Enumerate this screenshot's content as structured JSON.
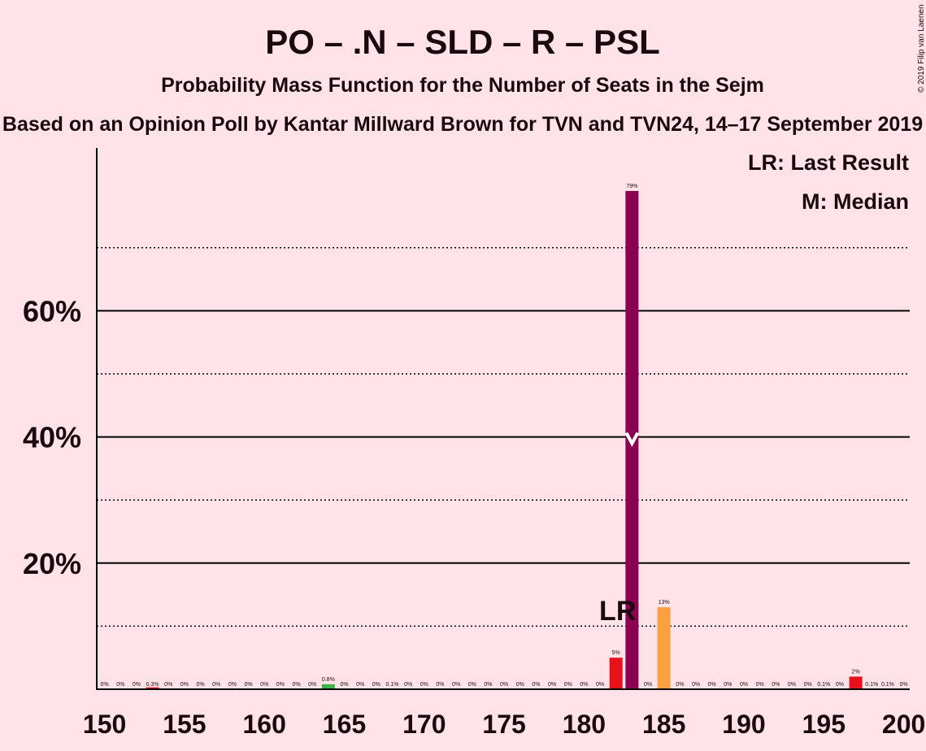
{
  "chart_data": {
    "type": "bar",
    "title": "PO – .N – SLD – R – PSL",
    "subtitle": "Probability Mass Function for the Number of Seats in the Sejm",
    "source": "Based on an Opinion Poll by Kantar Millward Brown for TVN and TVN24, 14–17 September 2019",
    "copyright": "© 2019 Filip van Laenen",
    "legend": {
      "last_result": "LR: Last Result",
      "median": "M: Median",
      "placement": "top-right"
    },
    "x_range": [
      150,
      200
    ],
    "x_ticks": [
      "150",
      "155",
      "160",
      "165",
      "170",
      "175",
      "180",
      "185",
      "190",
      "195",
      "200"
    ],
    "y_range": [
      0,
      85
    ],
    "y_ticks_major": [
      {
        "value": 20,
        "label": "20%"
      },
      {
        "value": 40,
        "label": "40%"
      },
      {
        "value": 60,
        "label": "60%"
      }
    ],
    "y_gridlines_minor": [
      10,
      30,
      50,
      70
    ],
    "last_result": {
      "seats": 182,
      "label": "LR"
    },
    "median": {
      "seats": 183,
      "value": 40
    },
    "colors": {
      "background": "#FFE3E8",
      "median_bar": "#8B0051",
      "last_result_bar": "#E8101B",
      "orange_bar": "#FFA040",
      "green_bar": "#3CB44B",
      "red_bar": "#E8101B",
      "text": "#1a0a0f"
    },
    "bars": [
      {
        "seats": 150,
        "value": 0,
        "label": "0%"
      },
      {
        "seats": 151,
        "value": 0,
        "label": "0%"
      },
      {
        "seats": 152,
        "value": 0,
        "label": "0%"
      },
      {
        "seats": 153,
        "value": 0.3,
        "label": "0.3%",
        "color": "red"
      },
      {
        "seats": 154,
        "value": 0,
        "label": "0%"
      },
      {
        "seats": 155,
        "value": 0,
        "label": "0%"
      },
      {
        "seats": 156,
        "value": 0,
        "label": "0%"
      },
      {
        "seats": 157,
        "value": 0,
        "label": "0%"
      },
      {
        "seats": 158,
        "value": 0,
        "label": "0%"
      },
      {
        "seats": 159,
        "value": 0,
        "label": "0%"
      },
      {
        "seats": 160,
        "value": 0,
        "label": "0%"
      },
      {
        "seats": 161,
        "value": 0,
        "label": "0%"
      },
      {
        "seats": 162,
        "value": 0,
        "label": "0%"
      },
      {
        "seats": 163,
        "value": 0,
        "label": "0%"
      },
      {
        "seats": 164,
        "value": 0.8,
        "label": "0.8%",
        "color": "green"
      },
      {
        "seats": 165,
        "value": 0,
        "label": "0%"
      },
      {
        "seats": 166,
        "value": 0,
        "label": "0%"
      },
      {
        "seats": 167,
        "value": 0,
        "label": "0%"
      },
      {
        "seats": 168,
        "value": 0.1,
        "label": "0.1%"
      },
      {
        "seats": 169,
        "value": 0,
        "label": "0%"
      },
      {
        "seats": 170,
        "value": 0,
        "label": "0%"
      },
      {
        "seats": 171,
        "value": 0,
        "label": "0%"
      },
      {
        "seats": 172,
        "value": 0,
        "label": "0%"
      },
      {
        "seats": 173,
        "value": 0,
        "label": "0%"
      },
      {
        "seats": 174,
        "value": 0,
        "label": "0%"
      },
      {
        "seats": 175,
        "value": 0,
        "label": "0%"
      },
      {
        "seats": 176,
        "value": 0,
        "label": "0%"
      },
      {
        "seats": 177,
        "value": 0,
        "label": "0%"
      },
      {
        "seats": 178,
        "value": 0,
        "label": "0%"
      },
      {
        "seats": 179,
        "value": 0,
        "label": "0%"
      },
      {
        "seats": 180,
        "value": 0,
        "label": "0%"
      },
      {
        "seats": 181,
        "value": 0,
        "label": "0%"
      },
      {
        "seats": 182,
        "value": 5,
        "label": "5%",
        "color": "red"
      },
      {
        "seats": 183,
        "value": 79,
        "label": "79%",
        "color": "median"
      },
      {
        "seats": 184,
        "value": 0,
        "label": "0%"
      },
      {
        "seats": 185,
        "value": 13,
        "label": "13%",
        "color": "orange"
      },
      {
        "seats": 186,
        "value": 0,
        "label": "0%"
      },
      {
        "seats": 187,
        "value": 0,
        "label": "0%"
      },
      {
        "seats": 188,
        "value": 0,
        "label": "0%"
      },
      {
        "seats": 189,
        "value": 0,
        "label": "0%"
      },
      {
        "seats": 190,
        "value": 0,
        "label": "0%"
      },
      {
        "seats": 191,
        "value": 0,
        "label": "0%"
      },
      {
        "seats": 192,
        "value": 0,
        "label": "0%"
      },
      {
        "seats": 193,
        "value": 0,
        "label": "0%"
      },
      {
        "seats": 194,
        "value": 0,
        "label": "0%"
      },
      {
        "seats": 195,
        "value": 0.1,
        "label": "0.1%"
      },
      {
        "seats": 196,
        "value": 0,
        "label": "0%"
      },
      {
        "seats": 197,
        "value": 2,
        "label": "2%",
        "color": "red"
      },
      {
        "seats": 198,
        "value": 0.1,
        "label": "0.1%"
      },
      {
        "seats": 199,
        "value": 0.1,
        "label": "0.1%"
      },
      {
        "seats": 200,
        "value": 0,
        "label": "0%"
      }
    ]
  }
}
